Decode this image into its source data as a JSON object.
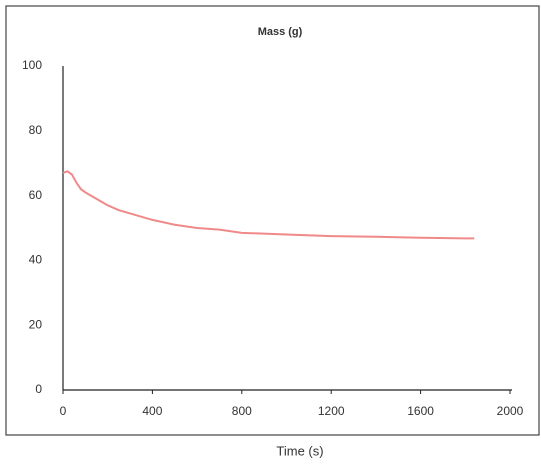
{
  "chart_data": {
    "type": "line",
    "title": "Mass (g)",
    "x_label": "Time (s)",
    "x": [
      0,
      20,
      40,
      60,
      80,
      100,
      150,
      200,
      250,
      300,
      400,
      500,
      600,
      700,
      800,
      1000,
      1200,
      1400,
      1600,
      1800,
      1840
    ],
    "series": [
      {
        "name": "Mass (g)",
        "color": "#f08a8a",
        "values": [
          67,
          67.5,
          66.5,
          64,
          62,
          61,
          59,
          57,
          55.5,
          54.5,
          52.5,
          51,
          50,
          49.5,
          48.5,
          48,
          47.5,
          47.3,
          47,
          46.8,
          46.8
        ]
      }
    ],
    "xlim": [
      0,
      2000
    ],
    "xticks": [
      0,
      400,
      800,
      1200,
      1600,
      2000
    ],
    "ylim": [
      0,
      100
    ],
    "yticks": [
      0,
      20,
      40,
      60,
      80,
      100
    ],
    "grid": false
  }
}
